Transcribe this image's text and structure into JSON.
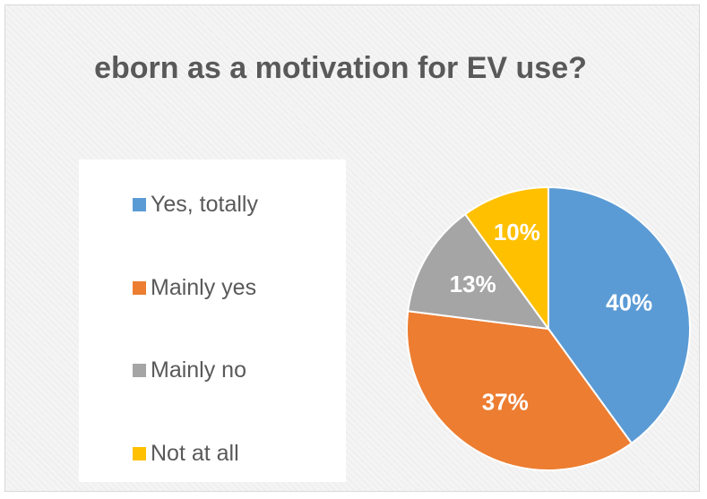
{
  "chart_data": {
    "type": "pie",
    "title": "eborn as a motivation for EV use?",
    "categories": [
      "Yes, totally",
      "Mainly yes",
      "Mainly no",
      "Not at all"
    ],
    "values": [
      40,
      37,
      13,
      10
    ],
    "labels": [
      "40%",
      "37%",
      "13%",
      "10%"
    ],
    "colors": [
      "#5b9bd5",
      "#ed7d31",
      "#a5a5a5",
      "#ffc000"
    ],
    "label_colors": [
      "#ffffff",
      "#ffffff",
      "#ffffff",
      "#ffffff"
    ],
    "legend_position": "left"
  }
}
